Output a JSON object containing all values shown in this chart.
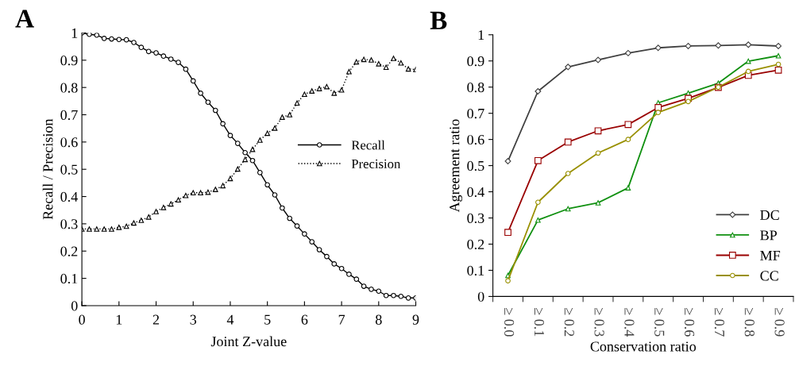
{
  "chart_data": [
    {
      "type": "line",
      "title": "A",
      "xlabel": "Joint Z-value",
      "ylabel": "Recall / Precision",
      "x": [
        0,
        0.2,
        0.4,
        0.6,
        0.8,
        1.0,
        1.2,
        1.4,
        1.6,
        1.8,
        2.0,
        2.2,
        2.4,
        2.6,
        2.8,
        3.0,
        3.2,
        3.4,
        3.6,
        3.8,
        4.0,
        4.2,
        4.4,
        4.6,
        4.8,
        5.0,
        5.2,
        5.4,
        5.6,
        5.8,
        6.0,
        6.2,
        6.4,
        6.6,
        6.8,
        7.0,
        7.2,
        7.4,
        7.6,
        7.8,
        8.0,
        8.2,
        8.4,
        8.6,
        8.8,
        9.0
      ],
      "series": [
        {
          "name": "Recall",
          "color": "#000000",
          "marker": "circle",
          "line_style": "solid",
          "values": [
            1.0,
            0.995,
            0.992,
            0.98,
            0.978,
            0.976,
            0.975,
            0.965,
            0.947,
            0.932,
            0.927,
            0.915,
            0.904,
            0.892,
            0.867,
            0.824,
            0.779,
            0.746,
            0.716,
            0.667,
            0.624,
            0.595,
            0.561,
            0.532,
            0.488,
            0.443,
            0.406,
            0.358,
            0.32,
            0.292,
            0.263,
            0.234,
            0.205,
            0.18,
            0.153,
            0.136,
            0.115,
            0.097,
            0.071,
            0.06,
            0.053,
            0.037,
            0.037,
            0.034,
            0.028,
            0.028
          ]
        },
        {
          "name": "Precision",
          "color": "#000000",
          "marker": "triangle",
          "line_style": "dotted",
          "values": [
            0.281,
            0.281,
            0.281,
            0.281,
            0.281,
            0.287,
            0.291,
            0.303,
            0.313,
            0.325,
            0.345,
            0.36,
            0.373,
            0.388,
            0.404,
            0.414,
            0.414,
            0.416,
            0.426,
            0.44,
            0.466,
            0.501,
            0.536,
            0.573,
            0.607,
            0.632,
            0.651,
            0.691,
            0.7,
            0.743,
            0.775,
            0.787,
            0.796,
            0.803,
            0.779,
            0.791,
            0.858,
            0.894,
            0.903,
            0.901,
            0.887,
            0.874,
            0.907,
            0.89,
            0.868,
            0.866
          ]
        }
      ],
      "xlim": [
        0,
        9
      ],
      "xticks": [
        0,
        1,
        2,
        3,
        4,
        5,
        6,
        7,
        8,
        9
      ],
      "ylim": [
        0,
        1
      ],
      "yticks": [
        0,
        0.1,
        0.2,
        0.3,
        0.4,
        0.5,
        0.6,
        0.7,
        0.8,
        0.9,
        1
      ],
      "legend": "right",
      "grid": false
    },
    {
      "type": "line",
      "title": "B",
      "xlabel": "Conservation ratio",
      "ylabel": "Agreement ratio",
      "categories": [
        "≥ 0.0",
        "≥ 0.1",
        "≥ 0.2",
        "≥ 0.3",
        "≥ 0.4",
        "≥ 0.5",
        "≥ 0.6",
        "≥ 0.7",
        "≥ 0.8",
        "≥ 0.9"
      ],
      "series": [
        {
          "name": "DC",
          "color": "#404040",
          "marker": "diamond",
          "values": [
            0.517,
            0.784,
            0.877,
            0.904,
            0.93,
            0.95,
            0.957,
            0.959,
            0.962,
            0.957
          ]
        },
        {
          "name": "BP",
          "color": "#109010",
          "marker": "triangle",
          "values": [
            0.08,
            0.292,
            0.335,
            0.358,
            0.415,
            0.74,
            0.777,
            0.815,
            0.899,
            0.92
          ]
        },
        {
          "name": "MF",
          "color": "#990000",
          "marker": "square",
          "values": [
            0.245,
            0.519,
            0.59,
            0.633,
            0.657,
            0.722,
            0.757,
            0.799,
            0.845,
            0.865
          ]
        },
        {
          "name": "CC",
          "color": "#999000",
          "marker": "circle",
          "values": [
            0.06,
            0.36,
            0.47,
            0.548,
            0.6,
            0.703,
            0.745,
            0.8,
            0.86,
            0.887
          ]
        }
      ],
      "ylim": [
        0,
        1
      ],
      "yticks": [
        0,
        0.1,
        0.2,
        0.3,
        0.4,
        0.5,
        0.6,
        0.7,
        0.8,
        0.9,
        1
      ],
      "legend": "bottom right",
      "grid": false
    }
  ]
}
